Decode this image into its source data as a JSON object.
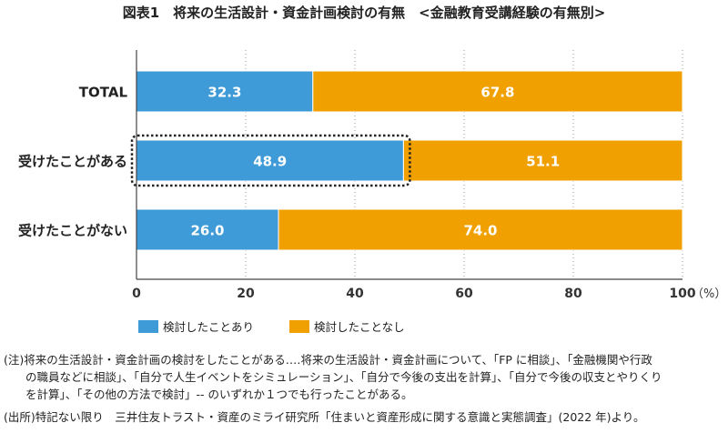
{
  "chart_data": {
    "type": "bar",
    "orientation": "horizontal-stacked",
    "title": "図表1　将来の生活設計・資金計画検討の有無　<金融教育受講経験の有無別>",
    "categories": [
      "TOTAL",
      "受けたことがある",
      "受けたことがない"
    ],
    "series": [
      {
        "name": "検討したことあり",
        "values": [
          32.3,
          48.9,
          26.0
        ],
        "color": "#3f9bd7"
      },
      {
        "name": "検討したことなし",
        "values": [
          67.8,
          51.1,
          74.0
        ],
        "color": "#f0a000"
      }
    ],
    "xlim": [
      0,
      100
    ],
    "xticks": [
      "0",
      "20",
      "40",
      "60",
      "80",
      "100"
    ],
    "xunit": "（%）",
    "grid": "vertical dotted",
    "legend": "bottom",
    "highlight": "受けたことがある"
  },
  "notes": [
    "(注)将来の生活設計・資金計画の検討をしたことがある‥‥将来の生活設計・資金計画について、「FP に相談」、「金融機関や行政",
    "の職員などに相談」、「自分で人生イベントをシミュレーション」、「自分で今後の支出を計算」、「自分で今後の収支とやりくり",
    "を計算」、「その他の方法で検討」-- のいずれか１つでも行ったことがある。",
    "(出所)特記ない限り　三井住友トラスト・資産のミライ研究所「住まいと資産形成に関する意識と実態調査」(2022 年)より。"
  ]
}
